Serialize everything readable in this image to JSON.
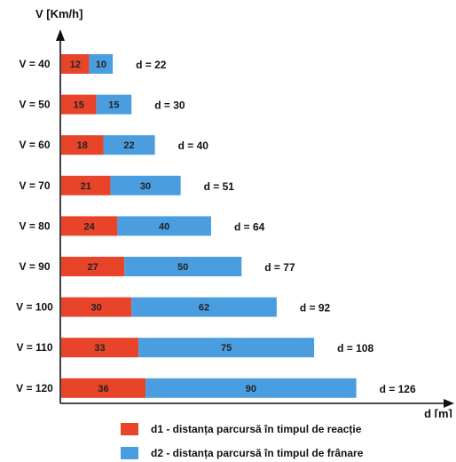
{
  "chart_data": {
    "type": "bar",
    "orientation": "horizontal",
    "stacked": true,
    "ylabel": "V [Km/h]",
    "xlabel": "d [m]",
    "categories": [
      "V = 40",
      "V = 50",
      "V = 60",
      "V = 70",
      "V = 80",
      "V = 90",
      "V = 100",
      "V = 110",
      "V = 120"
    ],
    "series": [
      {
        "name": "d1 - distanța parcursă în timpul de reacție",
        "color": "#e8442a",
        "values": [
          12,
          15,
          18,
          21,
          24,
          27,
          30,
          33,
          36
        ]
      },
      {
        "name": "d2 - distanța parcursă în timpul de frânare",
        "color": "#4a9ee0",
        "values": [
          10,
          15,
          22,
          30,
          40,
          50,
          62,
          75,
          90
        ]
      }
    ],
    "total_labels": [
      "d = 22",
      "d = 30",
      "d = 40",
      "d = 51",
      "d = 64",
      "d = 77",
      "d = 92",
      "d = 108",
      "d = 126"
    ],
    "legend": "bottom",
    "grid": false
  }
}
